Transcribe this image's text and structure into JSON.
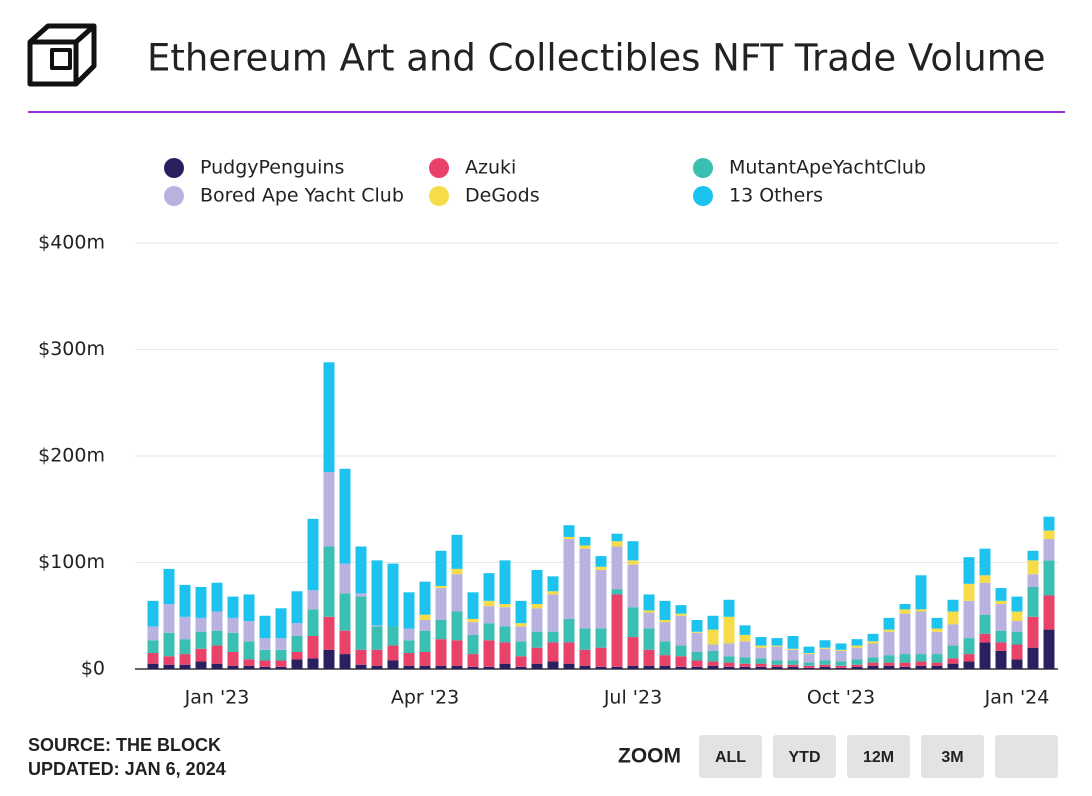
{
  "chart_data": {
    "type": "bar",
    "stacked": true,
    "title": "Ethereum Art and Collectibles NFT Trade Volume",
    "categories": [
      null,
      null,
      null,
      null,
      "Jan '23",
      null,
      null,
      null,
      null,
      null,
      null,
      null,
      null,
      null,
      null,
      null,
      null,
      "Apr '23",
      null,
      null,
      null,
      null,
      null,
      null,
      null,
      null,
      null,
      null,
      null,
      null,
      "Jul '23",
      null,
      null,
      null,
      null,
      null,
      null,
      null,
      null,
      null,
      null,
      null,
      null,
      "Oct '23",
      null,
      null,
      null,
      null,
      null,
      null,
      null,
      null,
      null,
      null,
      "Jan '24",
      null,
      null
    ],
    "series": [
      {
        "name": "PudgyPenguins",
        "color": "#2a2060",
        "values": [
          5,
          4,
          4,
          7,
          5,
          3,
          3,
          2,
          2,
          9,
          10,
          18,
          14,
          4,
          3,
          8,
          3,
          3,
          3,
          3,
          2,
          2,
          5,
          2,
          5,
          7,
          5,
          3,
          2,
          2,
          3,
          3,
          3,
          2,
          2,
          3,
          2,
          2,
          2,
          2,
          2,
          1,
          2,
          1,
          2,
          3,
          3,
          2,
          3,
          3,
          5,
          7,
          25,
          17,
          9,
          20,
          37
        ]
      },
      {
        "name": "Azuki",
        "color": "#e8416a",
        "values": [
          10,
          8,
          10,
          12,
          17,
          13,
          6,
          6,
          6,
          7,
          21,
          31,
          22,
          14,
          15,
          14,
          12,
          13,
          25,
          24,
          12,
          25,
          20,
          10,
          15,
          18,
          20,
          15,
          18,
          68,
          27,
          15,
          10,
          10,
          6,
          4,
          4,
          3,
          3,
          2,
          2,
          2,
          2,
          2,
          2,
          3,
          3,
          4,
          4,
          3,
          5,
          7,
          8,
          8,
          14,
          29,
          32
        ]
      },
      {
        "name": "MutantApeYachtClub",
        "color": "#3bbfb0",
        "values": [
          12,
          22,
          14,
          16,
          14,
          18,
          17,
          10,
          10,
          15,
          25,
          66,
          35,
          50,
          22,
          18,
          12,
          20,
          18,
          27,
          18,
          16,
          15,
          14,
          15,
          10,
          22,
          20,
          18,
          5,
          28,
          20,
          13,
          10,
          8,
          10,
          6,
          6,
          5,
          4,
          4,
          3,
          4,
          4,
          5,
          5,
          7,
          8,
          7,
          8,
          12,
          15,
          18,
          11,
          12,
          28,
          33
        ]
      },
      {
        "name": "Bored Ape Yacht Club",
        "color": "#b7b2e0",
        "values": [
          13,
          27,
          21,
          13,
          18,
          14,
          19,
          11,
          11,
          12,
          18,
          70,
          28,
          3,
          1,
          0,
          11,
          10,
          30,
          35,
          12,
          16,
          18,
          14,
          22,
          35,
          75,
          75,
          55,
          40,
          40,
          15,
          18,
          28,
          18,
          6,
          12,
          15,
          10,
          13,
          10,
          8,
          11,
          10,
          11,
          13,
          22,
          38,
          40,
          21,
          20,
          35,
          30,
          25,
          10,
          12,
          20
        ]
      },
      {
        "name": "DeGods",
        "color": "#f7dc4a",
        "values": [
          0,
          0,
          0,
          0,
          0,
          0,
          0,
          0,
          0,
          0,
          0,
          0,
          0,
          0,
          0,
          0,
          0,
          5,
          2,
          5,
          3,
          5,
          3,
          3,
          4,
          3,
          2,
          3,
          3,
          5,
          4,
          2,
          2,
          2,
          1,
          14,
          25,
          6,
          2,
          1,
          1,
          1,
          1,
          1,
          2,
          2,
          2,
          4,
          2,
          3,
          12,
          16,
          7,
          3,
          9,
          13,
          8
        ]
      },
      {
        "name": "13 Others",
        "color": "#1cc3ef",
        "values": [
          24,
          33,
          30,
          29,
          27,
          20,
          25,
          21,
          28,
          30,
          67,
          103,
          89,
          44,
          61,
          59,
          34,
          31,
          33,
          32,
          25,
          26,
          41,
          21,
          32,
          14,
          11,
          8,
          10,
          7,
          18,
          15,
          18,
          8,
          11,
          13,
          16,
          9,
          8,
          7,
          12,
          6,
          7,
          6,
          6,
          7,
          11,
          5,
          32,
          10,
          11,
          25,
          25,
          12,
          14,
          9,
          13
        ]
      }
    ],
    "ylim": [
      0,
      400
    ],
    "yticks": [
      {
        "value": 0,
        "label": "$0"
      },
      {
        "value": 100,
        "label": "$100m"
      },
      {
        "value": 200,
        "label": "$200m"
      },
      {
        "value": 300,
        "label": "$300m"
      },
      {
        "value": 400,
        "label": "$400m"
      }
    ],
    "grid": true,
    "legend": "top"
  },
  "footer": {
    "source": "SOURCE: THE BLOCK",
    "updated": "UPDATED: JAN 6, 2024"
  },
  "zoom": {
    "label": "ZOOM",
    "buttons": [
      "ALL",
      "YTD",
      "12M",
      "3M"
    ]
  }
}
